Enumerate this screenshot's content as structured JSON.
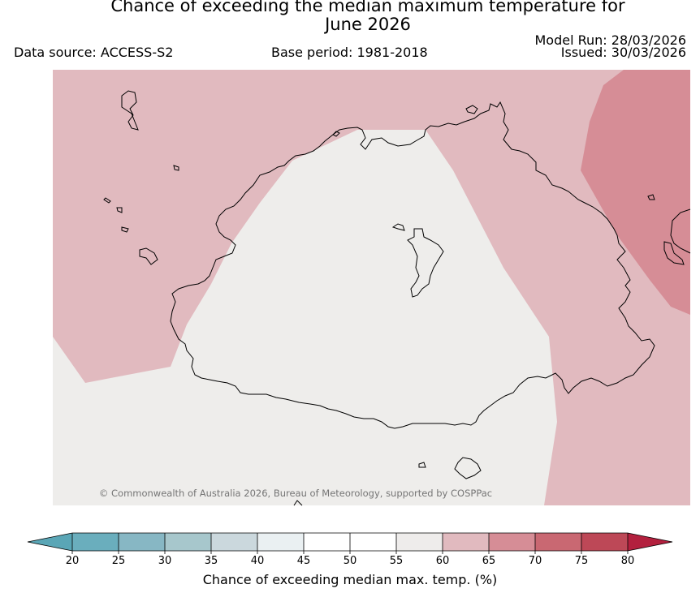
{
  "title_line1": "Chance of exceeding the median maximum temperature for",
  "title_line2": "June 2026",
  "data_source": "Data source: ACCESS-S2",
  "base_period": "Base period: 1981-2018",
  "model_run": "Model Run: 28/03/2026",
  "issued": "Issued: 30/03/2026",
  "copyright": "© Commonwealth of Australia 2026, Bureau of Meteorology, supported by COSPPac",
  "colorbar": {
    "label": "Chance of exceeding median max. temp. (%)",
    "ticks": [
      "20",
      "25",
      "30",
      "35",
      "40",
      "45",
      "50",
      "55",
      "60",
      "65",
      "70",
      "75",
      "80"
    ],
    "colors": [
      "#6aaebd",
      "#87b7c4",
      "#a7c7cc",
      "#cbd8dd",
      "#eaf0f2",
      "#ffffff",
      "#ffffff",
      "#eeeceb",
      "#e1babf",
      "#d68d96",
      "#c96872",
      "#bd4857"
    ],
    "under_color": "#5aa6b6",
    "over_color": "#b3203e"
  },
  "map_colors": {
    "neutral": "#eeedeb",
    "band_60_65": "#e1babf",
    "band_65_70": "#d68d96",
    "coastline": "#000000"
  }
}
